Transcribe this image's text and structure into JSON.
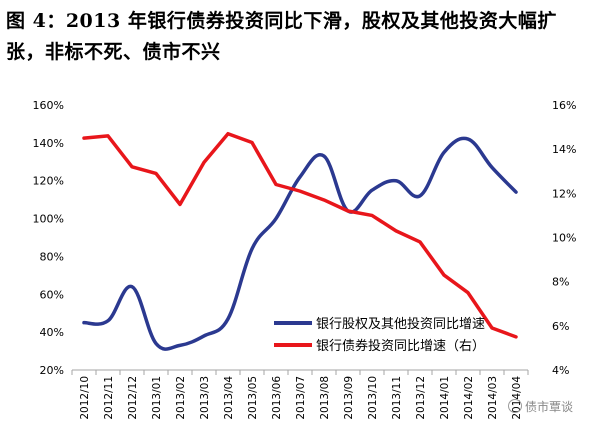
{
  "title": "图 4：2013 年银行债券投资同比下滑，股权及其他投资大幅扩张，非标不死、债市不兴",
  "watermark": "债市覃谈",
  "chart_data": {
    "type": "line",
    "categories": [
      "2012/10",
      "2012/11",
      "2012/12",
      "2013/01",
      "2013/02",
      "2013/03",
      "2013/04",
      "2013/05",
      "2013/06",
      "2013/07",
      "2013/08",
      "2013/09",
      "2013/10",
      "2013/11",
      "2013/12",
      "2014/01",
      "2014/02",
      "2014/03",
      "2014/04"
    ],
    "ylim_left": [
      20,
      160
    ],
    "yticks_left": [
      "20%",
      "40%",
      "60%",
      "80%",
      "100%",
      "120%",
      "140%",
      "160%"
    ],
    "ylim_right": [
      4,
      16
    ],
    "yticks_right": [
      "4%",
      "6%",
      "8%",
      "10%",
      "12%",
      "14%",
      "16%"
    ],
    "series": [
      {
        "name": "银行股权及其他投资同比增速",
        "axis": "left",
        "color": "#2b3990",
        "values": [
          45,
          46,
          64,
          34,
          33,
          38,
          47,
          84,
          100,
          122,
          133,
          104,
          115,
          120,
          112,
          135,
          142,
          127,
          114
        ]
      },
      {
        "name": "银行债券投资同比增速（右）",
        "axis": "right",
        "color": "#e8161b",
        "values": [
          14.5,
          14.6,
          13.2,
          12.9,
          11.5,
          13.4,
          14.7,
          14.3,
          12.4,
          12.1,
          11.7,
          11.2,
          11.0,
          10.3,
          9.8,
          8.3,
          7.5,
          5.9,
          5.5
        ]
      }
    ],
    "legend_position": "bottom-right"
  }
}
